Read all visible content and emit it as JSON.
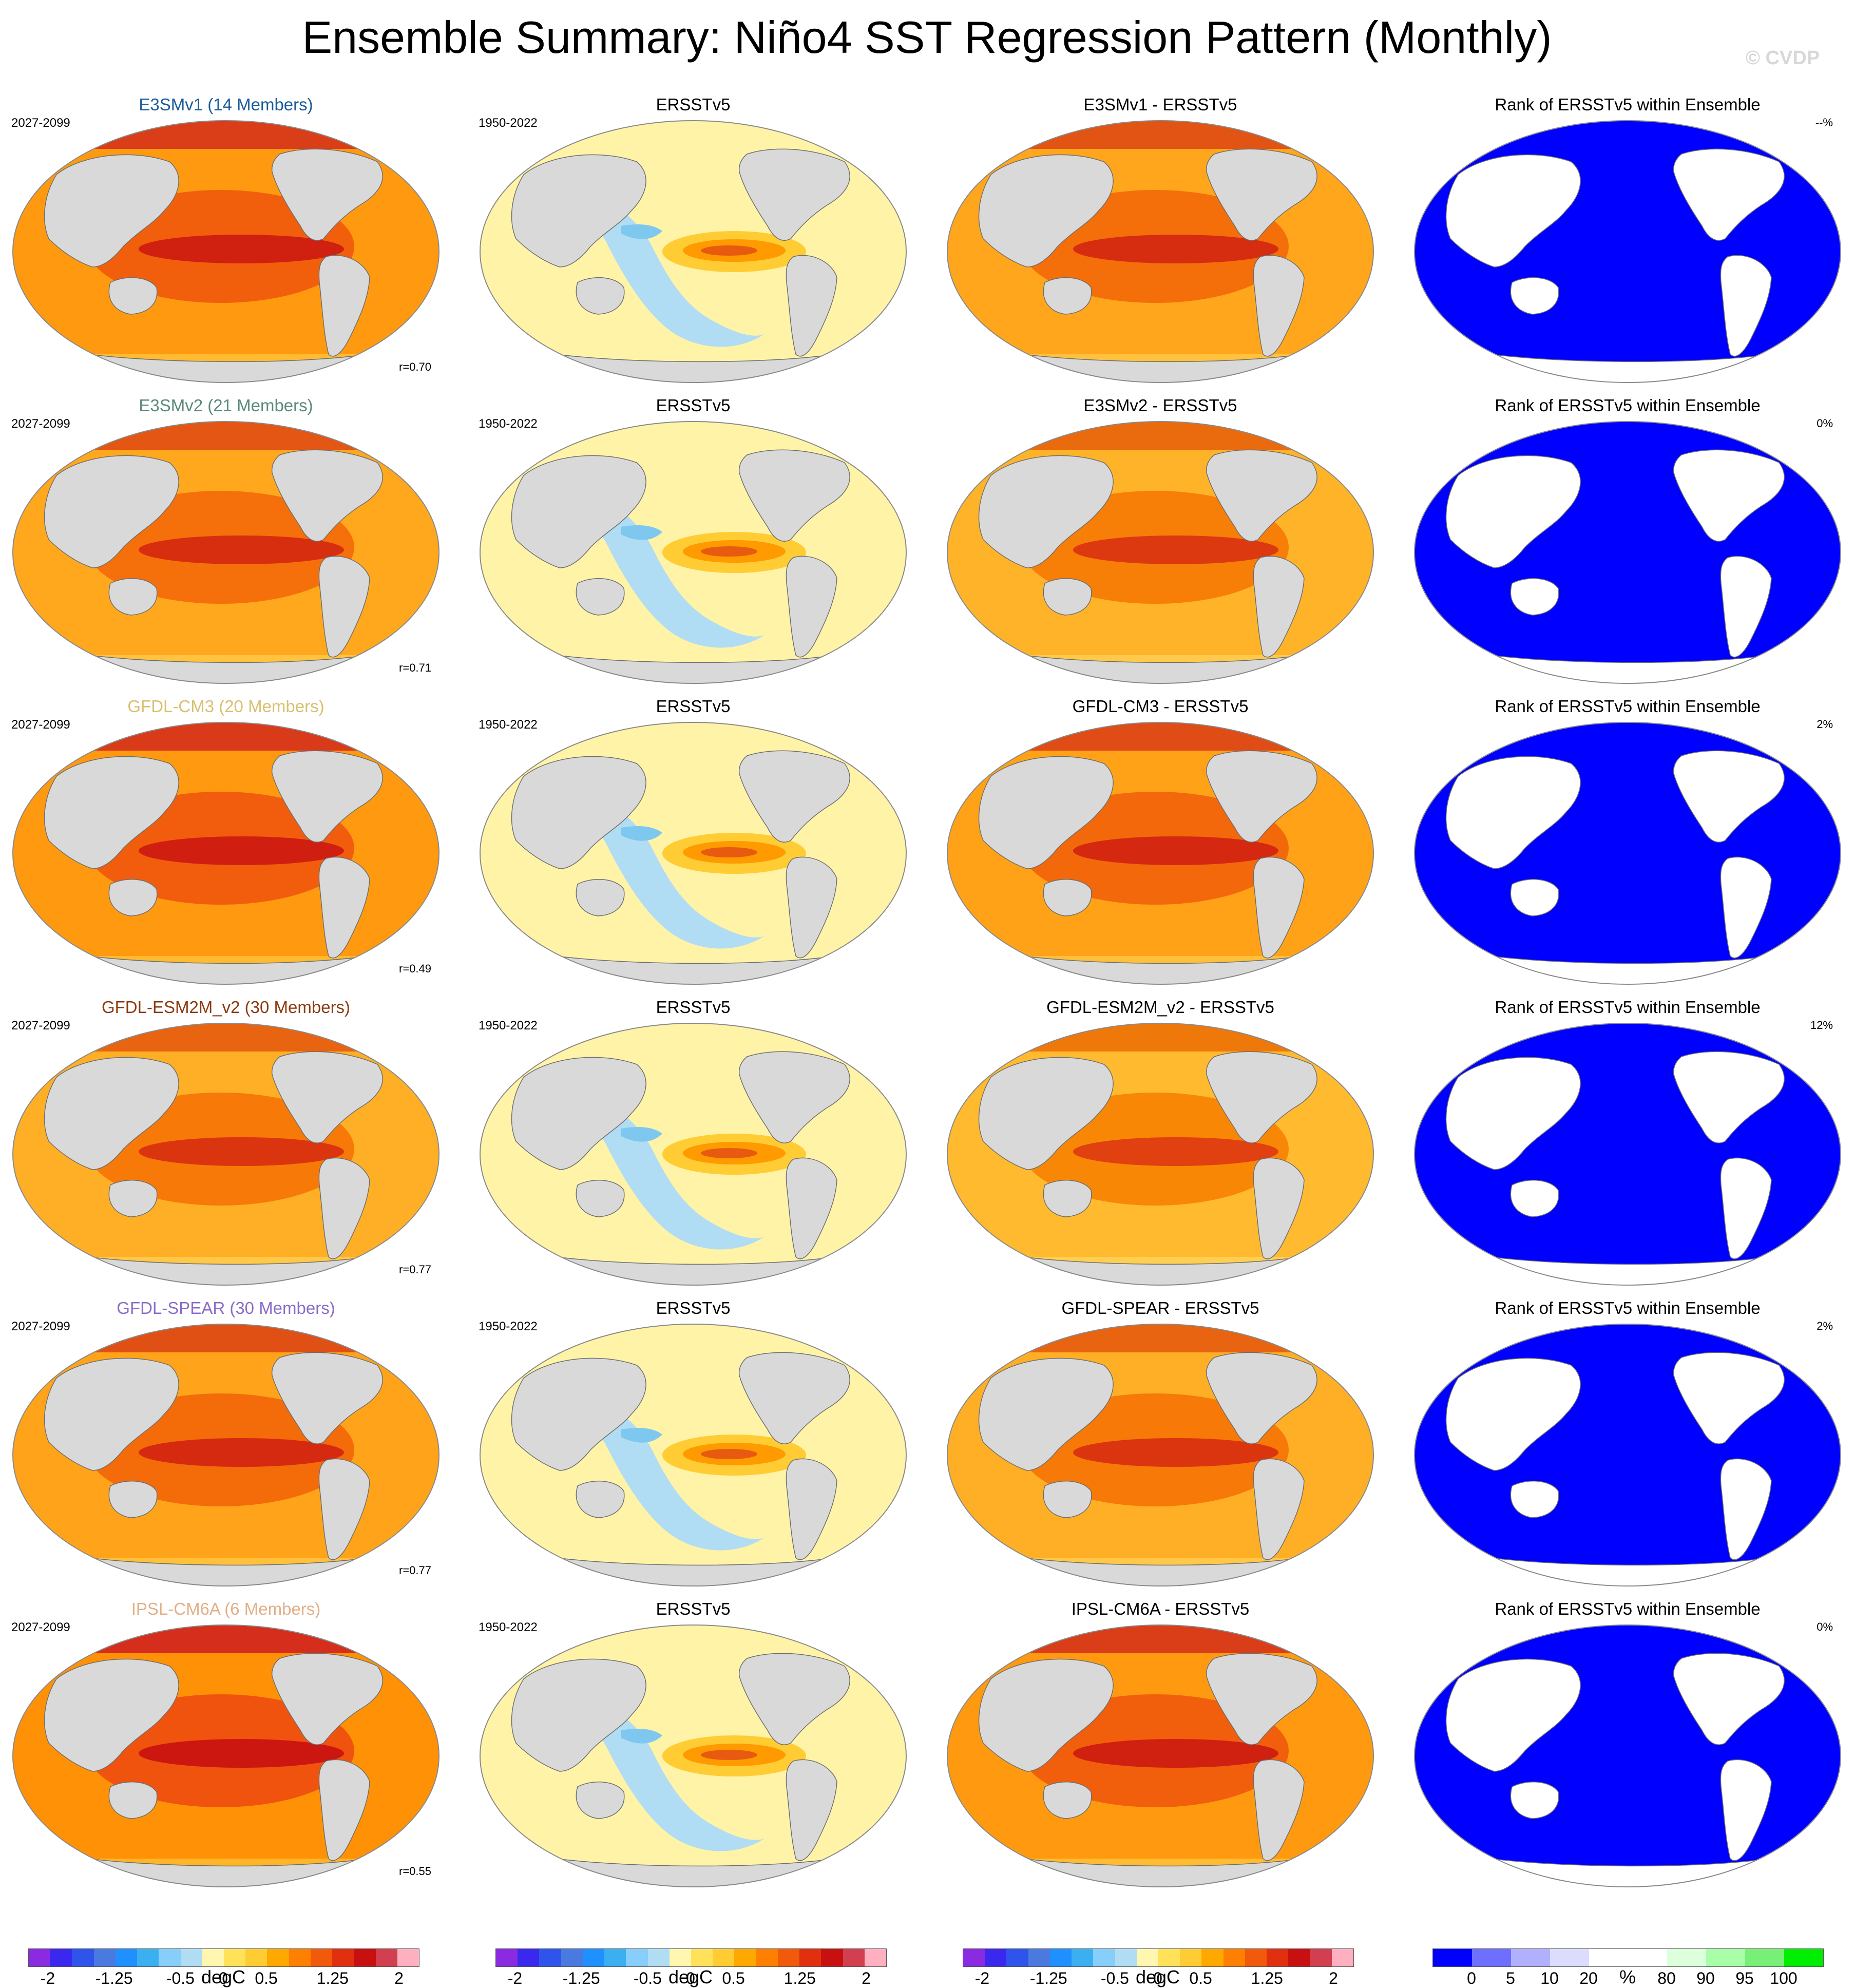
{
  "title": "Ensemble Summary: Niño4 SST Regression Pattern (Monthly)",
  "watermark": "© CVDP",
  "rows": [
    {
      "model_label": "E3SMv1 (14 Members)",
      "model_color": "#1a5c9a",
      "model_years": "2027-2099",
      "obs_label": "ERSSTv5",
      "obs_years": "1950-2022",
      "diff_label": "E3SMv1 - ERSSTv5",
      "rank_label": "Rank of ERSSTv5 within Ensemble",
      "r_text": "r=0.70",
      "rank_pct": "--%",
      "model_intensity": 0.78,
      "diff_intensity": 0.62
    },
    {
      "model_label": "E3SMv2 (21 Members)",
      "model_color": "#5a8a78",
      "model_years": "2027-2099",
      "obs_label": "ERSSTv5",
      "obs_years": "1950-2022",
      "diff_label": "E3SMv2 - ERSSTv5",
      "rank_label": "Rank of ERSSTv5 within Ensemble",
      "r_text": "r=0.71",
      "rank_pct": "0%",
      "model_intensity": 0.6,
      "diff_intensity": 0.45
    },
    {
      "model_label": "GFDL-CM3 (20 Members)",
      "model_color": "#d8c070",
      "model_years": "2027-2099",
      "obs_label": "ERSSTv5",
      "obs_years": "1950-2022",
      "diff_label": "GFDL-CM3 - ERSSTv5",
      "rank_label": "Rank of ERSSTv5 within Ensemble",
      "r_text": "r=0.49",
      "rank_pct": "2%",
      "model_intensity": 0.8,
      "diff_intensity": 0.68
    },
    {
      "model_label": "GFDL-ESM2M_v2 (30 Members)",
      "model_color": "#8b3a10",
      "model_years": "2027-2099",
      "obs_label": "ERSSTv5",
      "obs_years": "1950-2022",
      "diff_label": "GFDL-ESM2M_v2 - ERSSTv5",
      "rank_label": "Rank of ERSSTv5 within Ensemble",
      "r_text": "r=0.77",
      "rank_pct": "12%",
      "model_intensity": 0.5,
      "diff_intensity": 0.35
    },
    {
      "model_label": "GFDL-SPEAR (30 Members)",
      "model_color": "#8a6cc8",
      "model_years": "2027-2099",
      "obs_label": "ERSSTv5",
      "obs_years": "1950-2022",
      "diff_label": "GFDL-SPEAR - ERSSTv5",
      "rank_label": "Rank of ERSSTv5 within Ensemble",
      "r_text": "r=0.77",
      "rank_pct": "2%",
      "model_intensity": 0.65,
      "diff_intensity": 0.5
    },
    {
      "model_label": "IPSL-CM6A (6 Members)",
      "model_color": "#e0b088",
      "model_years": "2027-2099",
      "obs_label": "ERSSTv5",
      "obs_years": "1950-2022",
      "diff_label": "IPSL-CM6A - ERSSTv5",
      "rank_label": "Rank of ERSSTv5 within Ensemble",
      "r_text": "r=0.55",
      "rank_pct": "0%",
      "model_intensity": 0.9,
      "diff_intensity": 0.78
    }
  ],
  "colorbars": {
    "sst": {
      "colors": [
        "#8a2be2",
        "#3a28ef",
        "#2f54eb",
        "#4a7ae0",
        "#1e90ff",
        "#3bb0f0",
        "#87cefa",
        "#b0dcf4",
        "#fff6b0",
        "#ffe25a",
        "#ffcc33",
        "#ffa800",
        "#ff7f00",
        "#f05a0a",
        "#e03010",
        "#c81010",
        "#d24050",
        "#ffb0c0"
      ],
      "ticks": [
        "-2",
        "-1.25",
        "-0.5",
        "0",
        "0.5",
        "1.25",
        "2"
      ],
      "unit": "degC"
    },
    "rank": {
      "colors": [
        "#0000ff",
        "#6e6eff",
        "#b0b0ff",
        "#dcdcff",
        "#ffffff",
        "#ffffff",
        "#dcffdc",
        "#a8ffa8",
        "#78f078",
        "#00ee00"
      ],
      "ticks": [
        "0",
        "5",
        "10",
        "20",
        "80",
        "90",
        "95",
        "100"
      ],
      "unit": "%"
    }
  }
}
